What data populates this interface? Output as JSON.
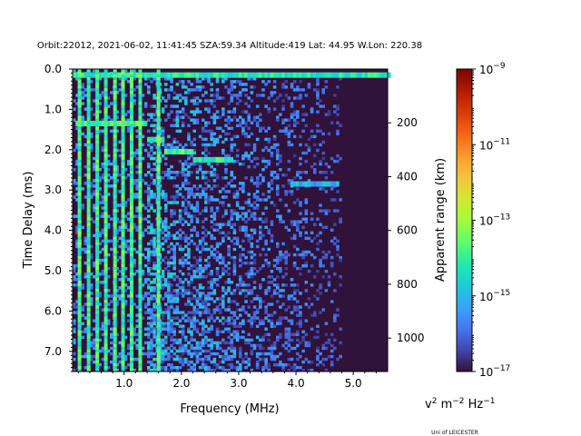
{
  "chart_data": {
    "type": "heatmap",
    "title": "Orbit:22012, 2021-06-02, 11:41:45 SZA:59.34 Altitude:419 Lat: 44.95 W.Lon: 220.38",
    "xlabel": "Frequency (MHz)",
    "ylabel": "Time Delay (ms)",
    "y2label": "Apparent range (km)",
    "xlim": [
      0.1,
      5.6
    ],
    "ylim": [
      7.5,
      0.0
    ],
    "xticks": [
      {
        "value": 1.0,
        "label": "1.0"
      },
      {
        "value": 2.0,
        "label": "2.0"
      },
      {
        "value": 3.0,
        "label": "3.0"
      },
      {
        "value": 4.0,
        "label": "4.0"
      },
      {
        "value": 5.0,
        "label": "5.0"
      }
    ],
    "yticks": [
      {
        "value": 0.0,
        "label": "0.0"
      },
      {
        "value": 1.0,
        "label": "1.0"
      },
      {
        "value": 2.0,
        "label": "2.0"
      },
      {
        "value": 3.0,
        "label": "3.0"
      },
      {
        "value": 4.0,
        "label": "4.0"
      },
      {
        "value": 5.0,
        "label": "5.0"
      },
      {
        "value": 6.0,
        "label": "6.0"
      },
      {
        "value": 7.0,
        "label": "7.0"
      }
    ],
    "y2ticks": [
      {
        "value": 200,
        "label": "200"
      },
      {
        "value": 400,
        "label": "400"
      },
      {
        "value": 600,
        "label": "600"
      },
      {
        "value": 800,
        "label": "800"
      },
      {
        "value": 1000,
        "label": "1000"
      }
    ],
    "colorbar": {
      "scale": "log",
      "min": 1e-17,
      "max": 1e-09,
      "colormap": "turbo",
      "ticks": [
        {
          "exp": -9,
          "label": "10",
          "sup": "−9"
        },
        {
          "exp": -11,
          "label": "10",
          "sup": "−11"
        },
        {
          "exp": -13,
          "label": "10",
          "sup": "−13"
        },
        {
          "exp": -15,
          "label": "10",
          "sup": "−15"
        },
        {
          "exp": -17,
          "label": "10",
          "sup": "−17"
        }
      ],
      "unit_v": "v",
      "unit_v_sup": "2",
      "unit_m": " m",
      "unit_m_sup": "−2",
      "unit_hz": " Hz",
      "unit_hz_sup": "−1"
    },
    "background_level_exp": -17,
    "features": [
      {
        "kind": "trace",
        "freq": [
          0.1,
          5.6
        ],
        "delay": 0.15,
        "level_exp": -14.2
      },
      {
        "kind": "trace",
        "freq": [
          0.15,
          1.4
        ],
        "delay": 1.35,
        "level_exp": -13.8
      },
      {
        "kind": "trace",
        "freq": [
          1.4,
          1.7
        ],
        "delay": 1.75,
        "level_exp": -14.2
      },
      {
        "kind": "trace",
        "freq": [
          1.7,
          2.2
        ],
        "delay": 2.05,
        "level_exp": -13.8
      },
      {
        "kind": "trace",
        "freq": [
          2.2,
          2.9
        ],
        "delay": 2.25,
        "level_exp": -14.2
      },
      {
        "kind": "trace",
        "freq": [
          3.9,
          4.7
        ],
        "delay": 2.85,
        "level_exp": -15.2
      },
      {
        "kind": "harmonic",
        "freq": [
          0.22,
          0.38,
          0.53,
          0.68,
          0.84,
          0.98,
          1.13,
          1.28,
          1.6
        ],
        "delay": [
          0.0,
          7.5
        ],
        "level_exp": -14.0
      }
    ],
    "noise_region": {
      "freq": [
        1.4,
        4.8
      ],
      "delay": [
        0.2,
        7.5
      ]
    }
  },
  "credit": "Uni of LEICESTER"
}
